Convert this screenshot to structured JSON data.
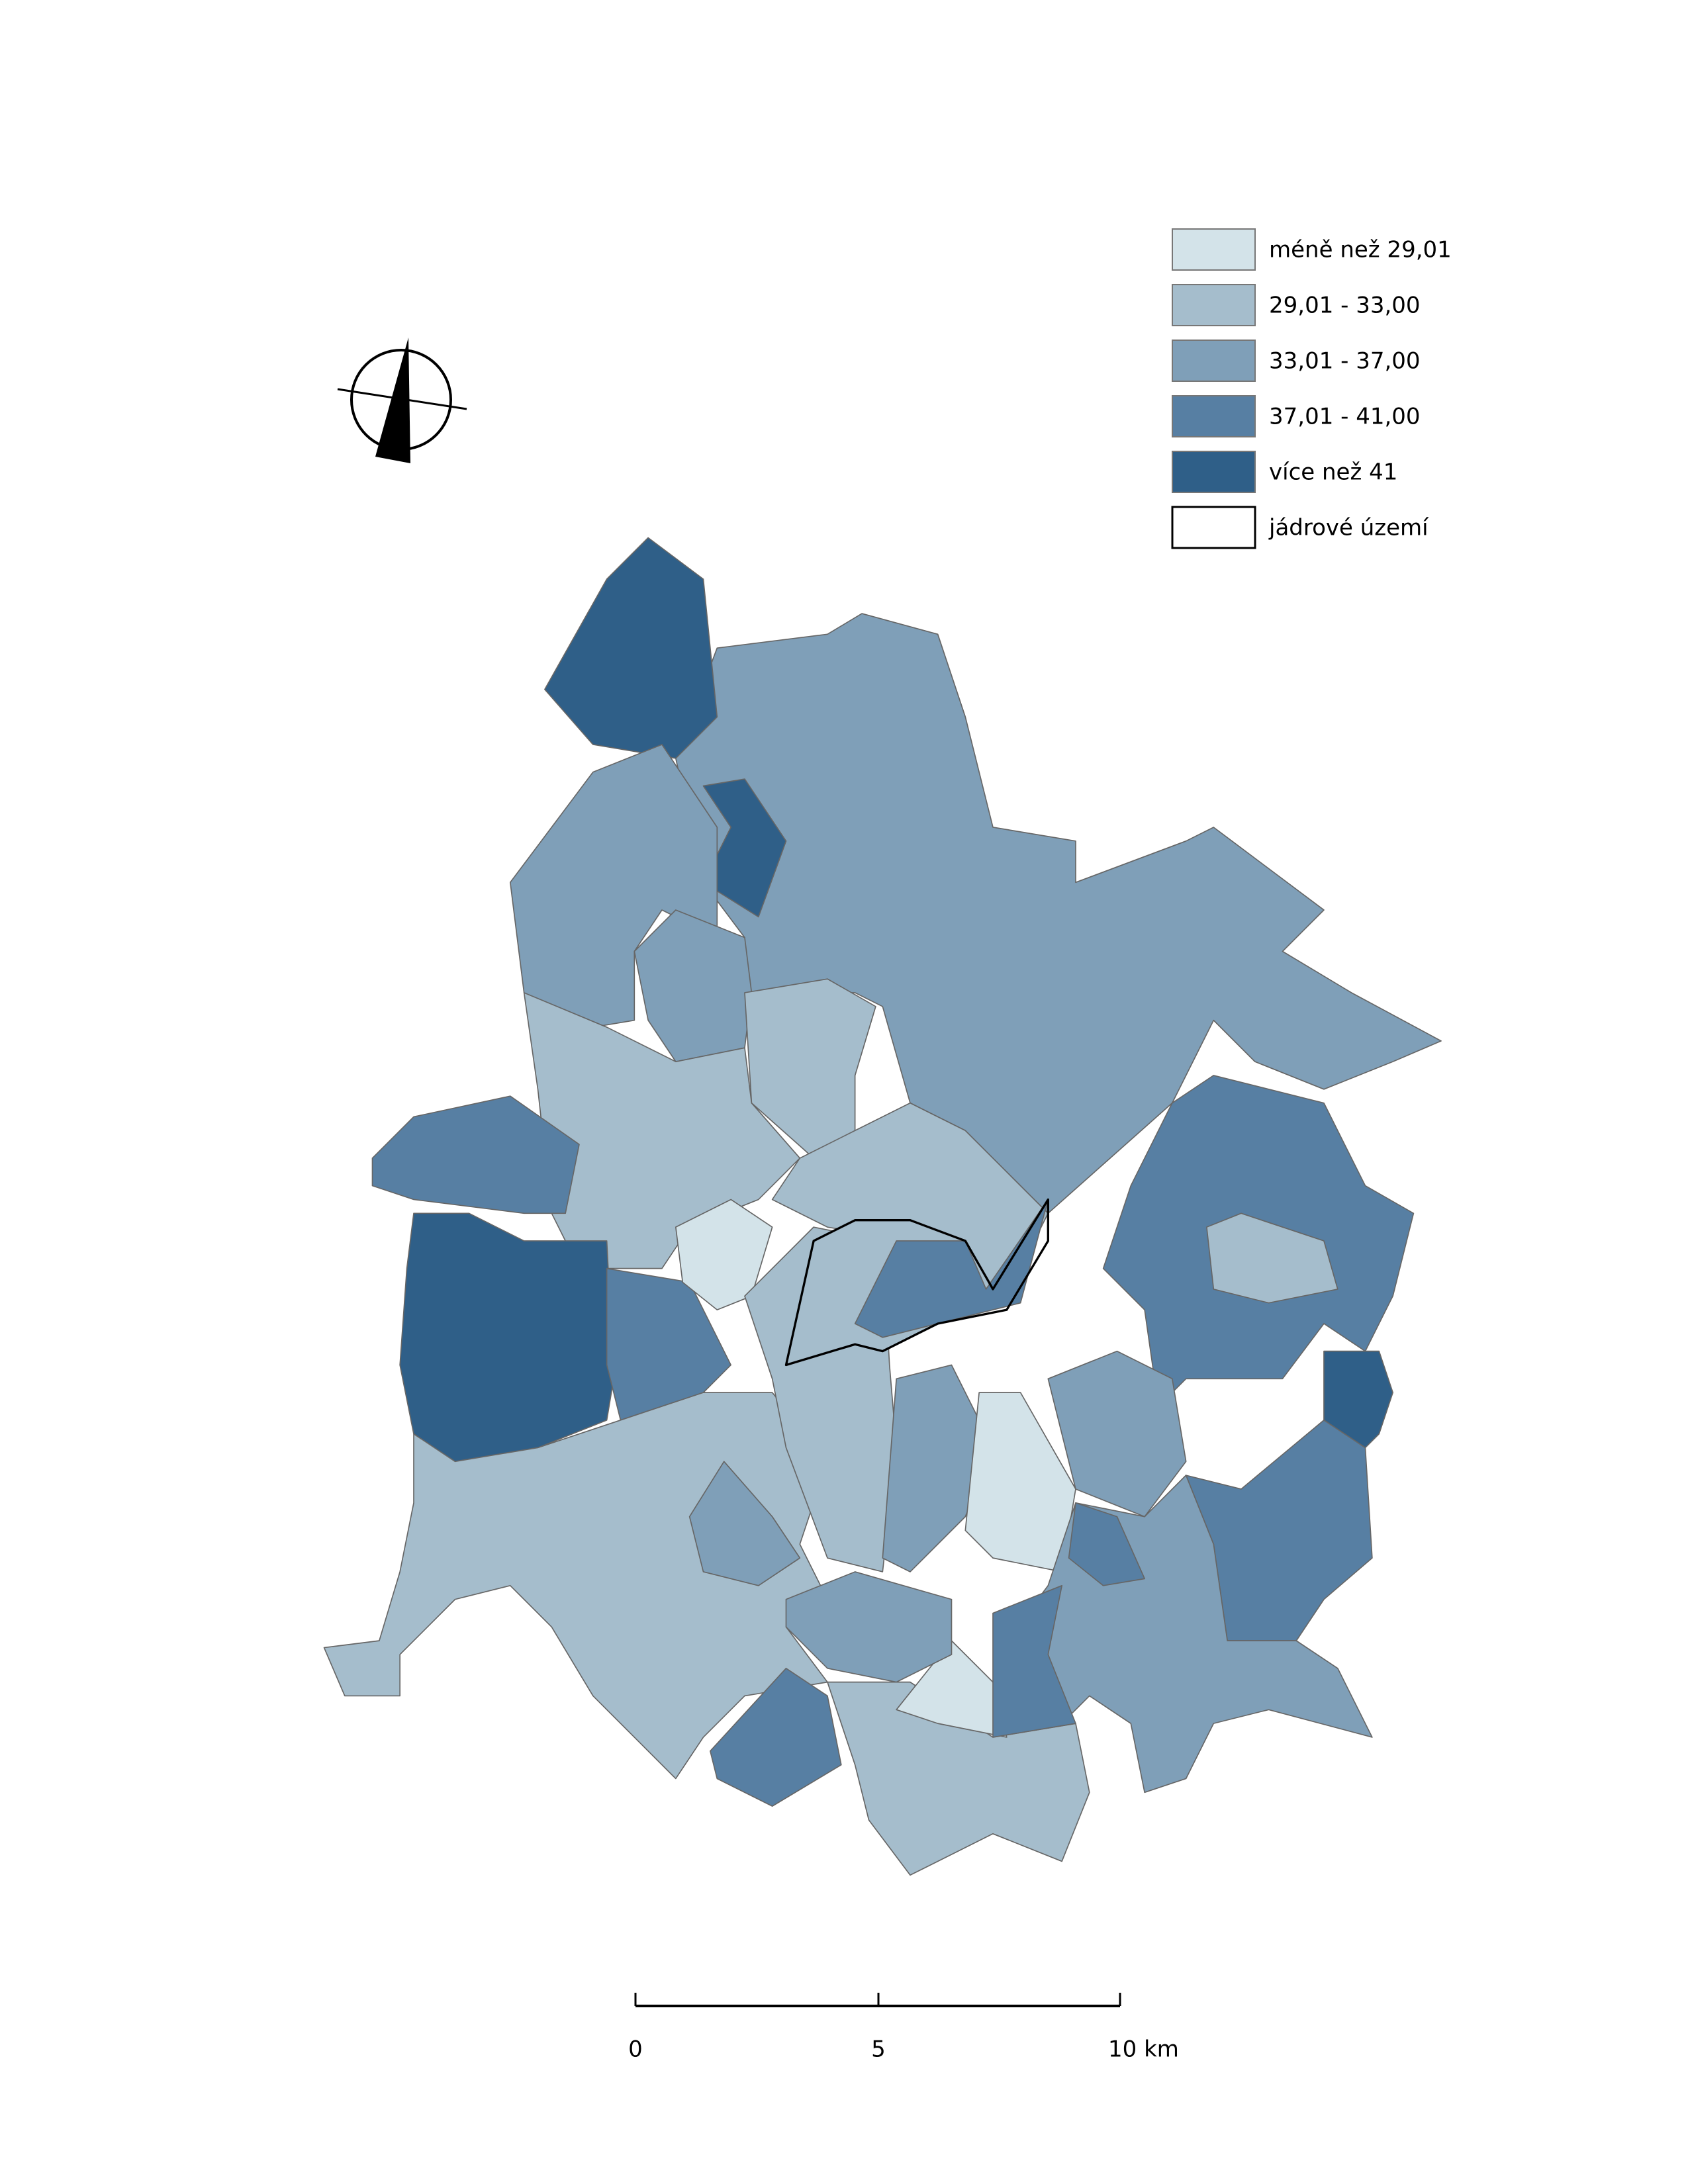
{
  "legend": {
    "items": [
      {
        "label": "méně než 29,01",
        "color": "#d3e3e9"
      },
      {
        "label": "29,01 - 33,00",
        "color": "#a5bdcc"
      },
      {
        "label": "33,01 - 37,00",
        "color": "#7f9fb8"
      },
      {
        "label": "37,01 - 41,00",
        "color": "#577fa3"
      },
      {
        "label": "více než 41",
        "color": "#2f5f88"
      },
      {
        "label": "jádrové území",
        "color": "#ffffff"
      }
    ]
  },
  "scale_bar": {
    "labels": [
      "0",
      "5",
      "10 km"
    ]
  }
}
